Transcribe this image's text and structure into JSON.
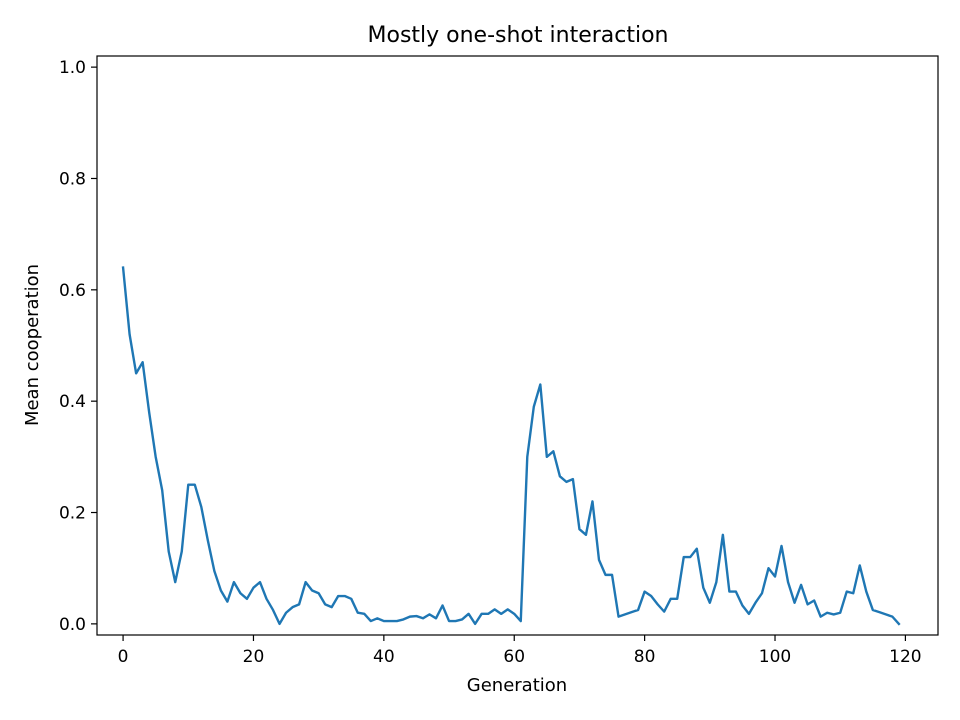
{
  "chart_data": {
    "type": "line",
    "title": "Mostly one-shot interaction",
    "xlabel": "Generation",
    "ylabel": "Mean cooperation",
    "xlim": [
      -4,
      125
    ],
    "ylim": [
      -0.02,
      1.02
    ],
    "xticks": [
      0,
      20,
      40,
      60,
      80,
      100,
      120
    ],
    "yticks": [
      0.0,
      0.2,
      0.4,
      0.6,
      0.8,
      1.0
    ],
    "xtick_labels": [
      "0",
      "20",
      "40",
      "60",
      "80",
      "100",
      "120"
    ],
    "ytick_labels": [
      "0.0",
      "0.2",
      "0.4",
      "0.6",
      "0.8",
      "1.0"
    ],
    "grid": false,
    "colors": {
      "line": "#1f77b4",
      "axes": "#000000",
      "background": "#ffffff"
    },
    "series": [
      {
        "x": [
          0,
          1,
          2,
          3,
          4,
          5,
          6,
          7,
          8,
          9,
          10,
          11,
          12,
          13,
          14,
          15,
          16,
          17,
          18,
          19,
          20,
          21,
          22,
          23,
          24,
          25,
          26,
          27,
          28,
          29,
          30,
          31,
          32,
          33,
          34,
          35,
          36,
          37,
          38,
          39,
          40,
          41,
          42,
          43,
          44,
          45,
          46,
          47,
          48,
          49,
          50,
          51,
          52,
          53,
          54,
          55,
          56,
          57,
          58,
          59,
          60,
          61,
          62,
          63,
          64,
          65,
          66,
          67,
          68,
          69,
          70,
          71,
          72,
          73,
          74,
          75,
          76,
          77,
          78,
          79,
          80,
          81,
          82,
          83,
          84,
          85,
          86,
          87,
          88,
          89,
          90,
          91,
          92,
          93,
          94,
          95,
          96,
          97,
          98,
          99,
          100,
          101,
          102,
          103,
          104,
          105,
          106,
          107,
          108,
          109,
          110,
          111,
          112,
          113,
          114,
          115,
          116,
          117,
          118,
          119
        ],
        "values": [
          0.64,
          0.52,
          0.45,
          0.47,
          0.38,
          0.3,
          0.24,
          0.13,
          0.075,
          0.13,
          0.25,
          0.25,
          0.21,
          0.15,
          0.095,
          0.06,
          0.04,
          0.075,
          0.055,
          0.045,
          0.065,
          0.075,
          0.045,
          0.025,
          0.0,
          0.02,
          0.03,
          0.035,
          0.075,
          0.06,
          0.055,
          0.035,
          0.03,
          0.05,
          0.05,
          0.045,
          0.02,
          0.018,
          0.005,
          0.01,
          0.005,
          0.005,
          0.005,
          0.008,
          0.013,
          0.014,
          0.01,
          0.017,
          0.01,
          0.033,
          0.005,
          0.005,
          0.008,
          0.018,
          0.0,
          0.018,
          0.018,
          0.026,
          0.018,
          0.026,
          0.018,
          0.005,
          0.3,
          0.39,
          0.43,
          0.3,
          0.31,
          0.265,
          0.255,
          0.26,
          0.17,
          0.16,
          0.22,
          0.115,
          0.088,
          0.088,
          0.013,
          0.017,
          0.021,
          0.025,
          0.058,
          0.05,
          0.035,
          0.022,
          0.045,
          0.045,
          0.12,
          0.12,
          0.135,
          0.065,
          0.038,
          0.075,
          0.16,
          0.058,
          0.058,
          0.033,
          0.018,
          0.038,
          0.055,
          0.1,
          0.085,
          0.14,
          0.075,
          0.038,
          0.07,
          0.035,
          0.042,
          0.013,
          0.02,
          0.017,
          0.02,
          0.058,
          0.055,
          0.105,
          0.058,
          0.025,
          0.021,
          0.017,
          0.013,
          0.0
        ]
      }
    ]
  }
}
